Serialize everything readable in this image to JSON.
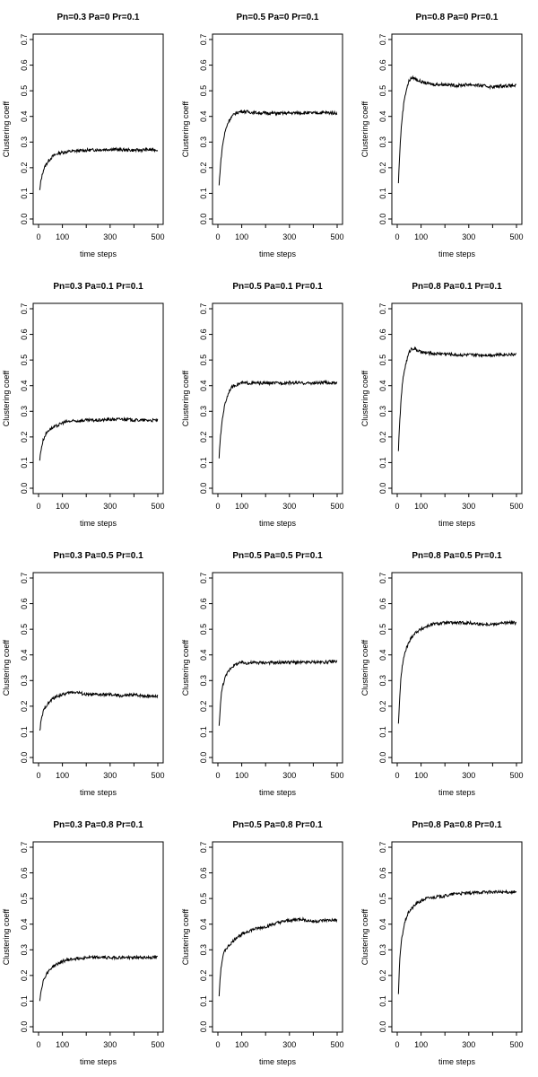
{
  "figure": {
    "rows": 4,
    "cols": 3
  },
  "chart_data": [
    {
      "type": "line",
      "title": "Pn=0.3 Pa=0 Pr=0.1",
      "xlabel": "time steps",
      "ylabel": "Clustering coeff",
      "xlim": [
        0,
        500
      ],
      "ylim": [
        0,
        0.7
      ],
      "xticks": [
        0,
        100,
        300,
        500
      ],
      "xtick_marks": [
        0,
        100,
        200,
        300,
        400,
        500
      ],
      "yticks": [
        0,
        0.1,
        0.2,
        0.3,
        0.4,
        0.5,
        0.6,
        0.7
      ],
      "grid": false,
      "series": [
        {
          "x": [
            5,
            10,
            20,
            30,
            40,
            50,
            60,
            70,
            80,
            100,
            120,
            150,
            200,
            250,
            300,
            350,
            400,
            450,
            500
          ],
          "y": [
            0.11,
            0.15,
            0.19,
            0.21,
            0.225,
            0.235,
            0.245,
            0.25,
            0.255,
            0.26,
            0.262,
            0.265,
            0.268,
            0.27,
            0.272,
            0.27,
            0.268,
            0.27,
            0.27
          ]
        }
      ]
    },
    {
      "type": "line",
      "title": "Pn=0.5 Pa=0 Pr=0.1",
      "xlabel": "time steps",
      "ylabel": "Clustering coeff",
      "xlim": [
        0,
        500
      ],
      "ylim": [
        0,
        0.7
      ],
      "xticks": [
        0,
        100,
        300,
        500
      ],
      "xtick_marks": [
        0,
        100,
        200,
        300,
        400,
        500
      ],
      "yticks": [
        0,
        0.1,
        0.2,
        0.3,
        0.4,
        0.5,
        0.6,
        0.7
      ],
      "grid": false,
      "series": [
        {
          "x": [
            5,
            10,
            15,
            20,
            30,
            40,
            50,
            60,
            70,
            80,
            100,
            120,
            150,
            200,
            250,
            300,
            350,
            400,
            450,
            500
          ],
          "y": [
            0.13,
            0.2,
            0.25,
            0.29,
            0.34,
            0.37,
            0.39,
            0.4,
            0.41,
            0.415,
            0.42,
            0.418,
            0.415,
            0.413,
            0.412,
            0.413,
            0.414,
            0.413,
            0.415,
            0.413
          ]
        }
      ]
    },
    {
      "type": "line",
      "title": "Pn=0.8 Pa=0 Pr=0.1",
      "xlabel": "time steps",
      "ylabel": "Clustering coeff",
      "xlim": [
        0,
        500
      ],
      "ylim": [
        0,
        0.7
      ],
      "xticks": [
        0,
        100,
        300,
        500
      ],
      "xtick_marks": [
        0,
        100,
        200,
        300,
        400,
        500
      ],
      "yticks": [
        0,
        0.1,
        0.2,
        0.3,
        0.4,
        0.5,
        0.6,
        0.7
      ],
      "grid": false,
      "series": [
        {
          "x": [
            5,
            10,
            15,
            20,
            25,
            30,
            40,
            50,
            60,
            70,
            80,
            100,
            120,
            150,
            200,
            250,
            300,
            350,
            400,
            450,
            500
          ],
          "y": [
            0.14,
            0.25,
            0.33,
            0.39,
            0.43,
            0.47,
            0.51,
            0.54,
            0.55,
            0.55,
            0.545,
            0.535,
            0.53,
            0.525,
            0.525,
            0.52,
            0.525,
            0.52,
            0.515,
            0.52,
            0.52
          ]
        }
      ]
    },
    {
      "type": "line",
      "title": "Pn=0.3 Pa=0.1 Pr=0.1",
      "xlabel": "time steps",
      "ylabel": "Clustering coeff",
      "xlim": [
        0,
        500
      ],
      "ylim": [
        0,
        0.7
      ],
      "xticks": [
        0,
        100,
        300,
        500
      ],
      "xtick_marks": [
        0,
        100,
        200,
        300,
        400,
        500
      ],
      "yticks": [
        0,
        0.1,
        0.2,
        0.3,
        0.4,
        0.5,
        0.6,
        0.7
      ],
      "grid": false,
      "series": [
        {
          "x": [
            5,
            10,
            20,
            30,
            40,
            50,
            60,
            70,
            80,
            100,
            120,
            150,
            200,
            250,
            300,
            350,
            400,
            450,
            500
          ],
          "y": [
            0.11,
            0.15,
            0.19,
            0.21,
            0.225,
            0.232,
            0.236,
            0.24,
            0.245,
            0.255,
            0.26,
            0.262,
            0.265,
            0.265,
            0.268,
            0.27,
            0.266,
            0.265,
            0.265
          ]
        }
      ]
    },
    {
      "type": "line",
      "title": "Pn=0.5 Pa=0.1 Pr=0.1",
      "xlabel": "time steps",
      "ylabel": "Clustering coeff",
      "xlim": [
        0,
        500
      ],
      "ylim": [
        0,
        0.7
      ],
      "xticks": [
        0,
        100,
        300,
        500
      ],
      "xtick_marks": [
        0,
        100,
        200,
        300,
        400,
        500
      ],
      "yticks": [
        0,
        0.1,
        0.2,
        0.3,
        0.4,
        0.5,
        0.6,
        0.7
      ],
      "grid": false,
      "series": [
        {
          "x": [
            5,
            10,
            15,
            20,
            30,
            40,
            50,
            60,
            70,
            80,
            100,
            120,
            150,
            200,
            250,
            300,
            350,
            400,
            450,
            500
          ],
          "y": [
            0.12,
            0.19,
            0.24,
            0.28,
            0.33,
            0.36,
            0.385,
            0.395,
            0.4,
            0.405,
            0.41,
            0.41,
            0.41,
            0.41,
            0.41,
            0.412,
            0.41,
            0.41,
            0.412,
            0.41
          ]
        }
      ]
    },
    {
      "type": "line",
      "title": "Pn=0.8 Pa=0.1 Pr=0.1",
      "xlabel": "time steps",
      "ylabel": "Clustering coeff",
      "xlim": [
        0,
        500
      ],
      "ylim": [
        0,
        0.7
      ],
      "xticks": [
        0,
        100,
        300,
        500
      ],
      "xtick_marks": [
        0,
        100,
        200,
        300,
        400,
        500
      ],
      "yticks": [
        0,
        0.1,
        0.2,
        0.3,
        0.4,
        0.5,
        0.6,
        0.7
      ],
      "grid": false,
      "series": [
        {
          "x": [
            5,
            10,
            15,
            20,
            25,
            30,
            40,
            50,
            60,
            70,
            80,
            100,
            120,
            150,
            200,
            250,
            300,
            350,
            400,
            450,
            500
          ],
          "y": [
            0.15,
            0.25,
            0.33,
            0.39,
            0.43,
            0.46,
            0.5,
            0.53,
            0.545,
            0.545,
            0.54,
            0.53,
            0.528,
            0.525,
            0.525,
            0.52,
            0.52,
            0.52,
            0.52,
            0.522,
            0.522
          ]
        }
      ]
    },
    {
      "type": "line",
      "title": "Pn=0.3 Pa=0.5 Pr=0.1",
      "xlabel": "time steps",
      "ylabel": "Clustering coeff",
      "xlim": [
        0,
        500
      ],
      "ylim": [
        0,
        0.7
      ],
      "xticks": [
        0,
        100,
        300,
        500
      ],
      "xtick_marks": [
        0,
        100,
        200,
        300,
        400,
        500
      ],
      "yticks": [
        0,
        0.1,
        0.2,
        0.3,
        0.4,
        0.5,
        0.6,
        0.7
      ],
      "grid": false,
      "series": [
        {
          "x": [
            5,
            10,
            20,
            30,
            40,
            50,
            60,
            80,
            100,
            120,
            140,
            160,
            200,
            250,
            300,
            350,
            400,
            450,
            500
          ],
          "y": [
            0.1,
            0.14,
            0.18,
            0.2,
            0.21,
            0.22,
            0.23,
            0.24,
            0.245,
            0.25,
            0.255,
            0.255,
            0.245,
            0.245,
            0.245,
            0.24,
            0.245,
            0.24,
            0.24
          ]
        }
      ]
    },
    {
      "type": "line",
      "title": "Pn=0.5 Pa=0.5 Pr=0.1",
      "xlabel": "time steps",
      "ylabel": "Clustering coeff",
      "xlim": [
        0,
        500
      ],
      "ylim": [
        0,
        0.7
      ],
      "xticks": [
        0,
        100,
        300,
        500
      ],
      "xtick_marks": [
        0,
        100,
        200,
        300,
        400,
        500
      ],
      "yticks": [
        0,
        0.1,
        0.2,
        0.3,
        0.4,
        0.5,
        0.6,
        0.7
      ],
      "grid": false,
      "series": [
        {
          "x": [
            5,
            10,
            15,
            20,
            30,
            40,
            50,
            60,
            70,
            80,
            100,
            120,
            150,
            200,
            250,
            300,
            350,
            400,
            450,
            500
          ],
          "y": [
            0.12,
            0.2,
            0.25,
            0.28,
            0.31,
            0.33,
            0.345,
            0.355,
            0.36,
            0.365,
            0.37,
            0.368,
            0.37,
            0.37,
            0.37,
            0.372,
            0.37,
            0.372,
            0.372,
            0.375
          ]
        }
      ]
    },
    {
      "type": "line",
      "title": "Pn=0.8 Pa=0.5 Pr=0.1",
      "xlabel": "time steps",
      "ylabel": "Clustering coeff",
      "xlim": [
        0,
        500
      ],
      "ylim": [
        0,
        0.7
      ],
      "xticks": [
        0,
        100,
        300,
        500
      ],
      "xtick_marks": [
        0,
        100,
        200,
        300,
        400,
        500
      ],
      "yticks": [
        0,
        0.1,
        0.2,
        0.3,
        0.4,
        0.5,
        0.6,
        0.7
      ],
      "grid": false,
      "series": [
        {
          "x": [
            5,
            10,
            15,
            20,
            30,
            40,
            50,
            60,
            80,
            100,
            120,
            150,
            200,
            250,
            300,
            350,
            400,
            450,
            500
          ],
          "y": [
            0.13,
            0.23,
            0.3,
            0.35,
            0.4,
            0.43,
            0.45,
            0.47,
            0.49,
            0.5,
            0.51,
            0.52,
            0.525,
            0.525,
            0.525,
            0.52,
            0.52,
            0.525,
            0.525
          ]
        }
      ]
    },
    {
      "type": "line",
      "title": "Pn=0.3 Pa=0.8 Pr=0.1",
      "xlabel": "time steps",
      "ylabel": "Clustering coeff",
      "xlim": [
        0,
        500
      ],
      "ylim": [
        0,
        0.7
      ],
      "xticks": [
        0,
        100,
        300,
        500
      ],
      "xtick_marks": [
        0,
        100,
        200,
        300,
        400,
        500
      ],
      "yticks": [
        0,
        0.1,
        0.2,
        0.3,
        0.4,
        0.5,
        0.6,
        0.7
      ],
      "grid": false,
      "series": [
        {
          "x": [
            5,
            10,
            20,
            30,
            40,
            50,
            60,
            80,
            100,
            120,
            150,
            200,
            250,
            300,
            350,
            400,
            450,
            500
          ],
          "y": [
            0.1,
            0.14,
            0.18,
            0.2,
            0.215,
            0.225,
            0.235,
            0.245,
            0.255,
            0.26,
            0.265,
            0.27,
            0.27,
            0.27,
            0.27,
            0.27,
            0.27,
            0.27
          ]
        }
      ]
    },
    {
      "type": "line",
      "title": "Pn=0.5 Pa=0.8 Pr=0.1",
      "xlabel": "time steps",
      "ylabel": "Clustering coeff",
      "xlim": [
        0,
        500
      ],
      "ylim": [
        0,
        0.7
      ],
      "xticks": [
        0,
        100,
        300,
        500
      ],
      "xtick_marks": [
        0,
        100,
        200,
        300,
        400,
        500
      ],
      "yticks": [
        0,
        0.1,
        0.2,
        0.3,
        0.4,
        0.5,
        0.6,
        0.7
      ],
      "grid": false,
      "series": [
        {
          "x": [
            5,
            10,
            15,
            20,
            30,
            40,
            50,
            60,
            80,
            100,
            120,
            150,
            200,
            250,
            300,
            350,
            400,
            450,
            500
          ],
          "y": [
            0.12,
            0.2,
            0.24,
            0.27,
            0.3,
            0.31,
            0.32,
            0.33,
            0.35,
            0.36,
            0.37,
            0.38,
            0.39,
            0.405,
            0.415,
            0.42,
            0.41,
            0.415,
            0.415
          ]
        }
      ]
    },
    {
      "type": "line",
      "title": "Pn=0.8 Pa=0.8 Pr=0.1",
      "xlabel": "time steps",
      "ylabel": "Clustering coeff",
      "xlim": [
        0,
        500
      ],
      "ylim": [
        0,
        0.7
      ],
      "xticks": [
        0,
        100,
        300,
        500
      ],
      "xtick_marks": [
        0,
        100,
        200,
        300,
        400,
        500
      ],
      "yticks": [
        0,
        0.1,
        0.2,
        0.3,
        0.4,
        0.5,
        0.6,
        0.7
      ],
      "grid": false,
      "series": [
        {
          "x": [
            5,
            10,
            15,
            20,
            30,
            40,
            50,
            60,
            80,
            100,
            120,
            150,
            200,
            250,
            300,
            350,
            400,
            450,
            500
          ],
          "y": [
            0.13,
            0.25,
            0.31,
            0.35,
            0.4,
            0.43,
            0.45,
            0.46,
            0.48,
            0.49,
            0.5,
            0.505,
            0.51,
            0.52,
            0.52,
            0.525,
            0.525,
            0.525,
            0.525
          ]
        }
      ]
    }
  ]
}
